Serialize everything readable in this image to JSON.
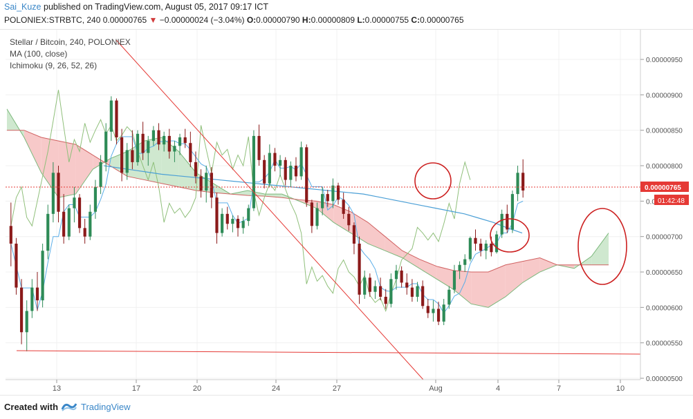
{
  "header": {
    "author": "Sai_Kuze",
    "published_text": "published on TradingView.com, August 05, 2017 09:17 ICT",
    "symbol": "POLONIEX:STRBTC, 240",
    "last_price": "0.00000765",
    "change": "−0.00000024 (−3.04%)",
    "o_label": "O:",
    "o_value": "0.00000790",
    "h_label": "H:",
    "h_value": "0.00000809",
    "l_label": "L:",
    "l_value": "0.00000755",
    "c_label": "C:",
    "c_value": "0.00000765"
  },
  "legend": {
    "title": "Stellar / Bitcoin, 240, POLONIEX",
    "ma": "MA (100, close)",
    "ichimoku": "Ichimoku (9, 26, 52, 26)"
  },
  "price_badge": "0.00000765",
  "countdown_badge": "01:42:48",
  "footer": {
    "created_with": "Created with",
    "brand": "TradingView"
  },
  "colors": {
    "bull": "#2e8b57",
    "bear": "#8b1a1a",
    "cloud_bear": "#f7c9c9",
    "cloud_bull": "#cfe8cf",
    "ma": "#4a9fd6",
    "price_badge": "#e53935",
    "trendline": "#e53935",
    "annotation": "#cc1f1f"
  },
  "chart_data": {
    "type": "candlestick",
    "title": "Stellar / Bitcoin, 240, POLONIEX",
    "ylim": [
      5e-06,
      9.9e-06
    ],
    "y_ticks": [
      "0.00000950",
      "0.00000900",
      "0.00000850",
      "0.00000800",
      "0.00000750",
      "0.00000700",
      "0.00000650",
      "0.00000600",
      "0.00000550",
      "0.00000500"
    ],
    "x_ticks": [
      "13",
      "17",
      "20",
      "24",
      "27",
      "Aug",
      "4",
      "7",
      "10"
    ],
    "candles": [
      [
        715,
        748,
        658,
        690
      ],
      [
        690,
        698,
        618,
        628
      ],
      [
        628,
        640,
        548,
        565
      ],
      [
        565,
        610,
        538,
        595
      ],
      [
        595,
        640,
        585,
        628
      ],
      [
        628,
        650,
        595,
        610
      ],
      [
        610,
        690,
        600,
        680
      ],
      [
        680,
        745,
        668,
        732
      ],
      [
        732,
        805,
        720,
        790
      ],
      [
        790,
        800,
        720,
        735
      ],
      [
        735,
        760,
        690,
        700
      ],
      [
        700,
        745,
        695,
        740
      ],
      [
        740,
        770,
        720,
        755
      ],
      [
        755,
        760,
        705,
        712
      ],
      [
        712,
        725,
        690,
        700
      ],
      [
        700,
        745,
        695,
        735
      ],
      [
        735,
        780,
        725,
        770
      ],
      [
        770,
        815,
        760,
        805
      ],
      [
        805,
        860,
        792,
        848
      ],
      [
        848,
        898,
        835,
        892
      ],
      [
        892,
        895,
        830,
        840
      ],
      [
        840,
        852,
        778,
        790
      ],
      [
        790,
        832,
        780,
        822
      ],
      [
        822,
        850,
        795,
        805
      ],
      [
        805,
        850,
        800,
        845
      ],
      [
        845,
        862,
        808,
        818
      ],
      [
        818,
        842,
        800,
        835
      ],
      [
        835,
        856,
        828,
        850
      ],
      [
        850,
        860,
        822,
        830
      ],
      [
        830,
        848,
        820,
        842
      ],
      [
        842,
        852,
        810,
        820
      ],
      [
        820,
        835,
        805,
        828
      ],
      [
        828,
        845,
        815,
        840
      ],
      [
        840,
        852,
        825,
        832
      ],
      [
        832,
        848,
        798,
        805
      ],
      [
        805,
        820,
        775,
        785
      ],
      [
        785,
        795,
        755,
        765
      ],
      [
        765,
        800,
        748,
        790
      ],
      [
        790,
        798,
        740,
        755
      ],
      [
        755,
        762,
        690,
        705
      ],
      [
        705,
        740,
        700,
        732
      ],
      [
        732,
        742,
        710,
        718
      ],
      [
        718,
        730,
        706,
        725
      ],
      [
        725,
        730,
        700,
        712
      ],
      [
        712,
        728,
        704,
        722
      ],
      [
        722,
        745,
        715,
        740
      ],
      [
        740,
        850,
        736,
        842
      ],
      [
        842,
        858,
        800,
        808
      ],
      [
        808,
        815,
        768,
        775
      ],
      [
        775,
        830,
        770,
        818
      ],
      [
        818,
        825,
        792,
        800
      ],
      [
        800,
        815,
        785,
        808
      ],
      [
        808,
        812,
        772,
        780
      ],
      [
        780,
        806,
        770,
        800
      ],
      [
        800,
        812,
        778,
        785
      ],
      [
        785,
        834,
        780,
        826
      ],
      [
        826,
        830,
        742,
        748
      ],
      [
        748,
        752,
        705,
        715
      ],
      [
        715,
        748,
        710,
        740
      ],
      [
        740,
        770,
        730,
        760
      ],
      [
        760,
        766,
        742,
        750
      ],
      [
        750,
        782,
        740,
        772
      ],
      [
        772,
        776,
        745,
        752
      ],
      [
        752,
        762,
        725,
        732
      ],
      [
        732,
        742,
        708,
        716
      ],
      [
        716,
        720,
        675,
        690
      ],
      [
        690,
        700,
        605,
        618
      ],
      [
        618,
        652,
        612,
        642
      ],
      [
        642,
        648,
        615,
        622
      ],
      [
        622,
        638,
        612,
        630
      ],
      [
        630,
        642,
        610,
        615
      ],
      [
        615,
        626,
        598,
        605
      ],
      [
        605,
        648,
        600,
        640
      ],
      [
        640,
        660,
        625,
        652
      ],
      [
        652,
        658,
        628,
        635
      ],
      [
        635,
        648,
        618,
        628
      ],
      [
        628,
        640,
        608,
        615
      ],
      [
        615,
        636,
        608,
        630
      ],
      [
        630,
        638,
        598,
        602
      ],
      [
        602,
        612,
        585,
        592
      ],
      [
        592,
        610,
        580,
        598
      ],
      [
        598,
        608,
        575,
        580
      ],
      [
        580,
        612,
        575,
        604
      ],
      [
        604,
        630,
        598,
        625
      ],
      [
        625,
        660,
        620,
        652
      ],
      [
        652,
        665,
        640,
        660
      ],
      [
        660,
        675,
        650,
        668
      ],
      [
        668,
        700,
        665,
        698
      ],
      [
        698,
        710,
        680,
        690
      ],
      [
        690,
        697,
        672,
        680
      ],
      [
        680,
        695,
        668,
        690
      ],
      [
        690,
        700,
        672,
        678
      ],
      [
        678,
        708,
        676,
        703
      ],
      [
        703,
        738,
        698,
        732
      ],
      [
        732,
        745,
        705,
        710
      ],
      [
        710,
        765,
        705,
        760
      ],
      [
        760,
        800,
        750,
        790
      ],
      [
        790,
        809,
        755,
        765
      ]
    ],
    "ma_100": [
      800,
      797,
      794,
      791,
      788,
      786,
      784,
      782,
      780,
      778,
      776,
      774,
      772,
      770,
      768,
      766,
      764,
      762,
      760,
      756,
      752,
      748,
      744,
      740,
      736,
      732,
      726,
      720,
      712,
      705
    ],
    "ichimoku_cloud_span_a": [
      880,
      840,
      790,
      755,
      760,
      795,
      810,
      820,
      835,
      840,
      820,
      790,
      775,
      760,
      765,
      760,
      760,
      750,
      740,
      720,
      705,
      690,
      680,
      670,
      655,
      640,
      625,
      605,
      600,
      615,
      635,
      650,
      660,
      655,
      672,
      705
    ],
    "ichimoku_cloud_span_b": [
      850,
      850,
      840,
      835,
      830,
      815,
      800,
      785,
      780,
      775,
      770,
      765,
      762,
      760,
      758,
      757,
      755,
      752,
      750,
      745,
      735,
      720,
      700,
      680,
      668,
      658,
      652,
      650,
      650,
      660,
      665,
      670,
      660,
      660,
      660,
      660
    ],
    "annotations": [
      "circle-1",
      "circle-2",
      "circle-3"
    ],
    "trendlines": [
      "descending",
      "horizontal-support"
    ]
  }
}
